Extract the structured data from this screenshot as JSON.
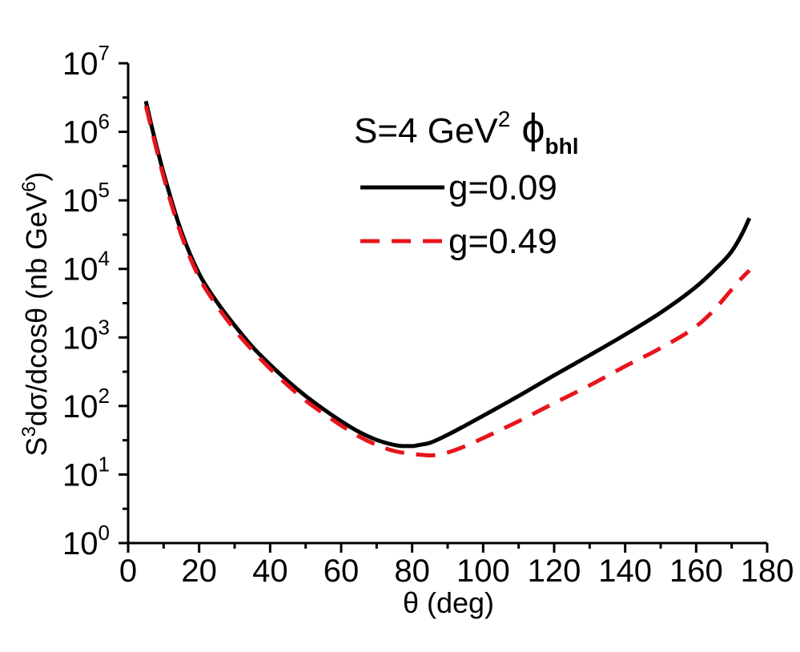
{
  "chart_data": {
    "type": "line",
    "x_scale": "linear",
    "y_scale": "log",
    "xlim": [
      0,
      180
    ],
    "ylim": [
      1,
      10000000
    ],
    "xticks": [
      0,
      20,
      40,
      60,
      80,
      100,
      120,
      140,
      160,
      180
    ],
    "xtick_labels": [
      "0",
      "20",
      "40",
      "60",
      "80",
      "100",
      "120",
      "140",
      "160",
      "180"
    ],
    "ytick_exponents": [
      0,
      1,
      2,
      3,
      4,
      5,
      6,
      7
    ],
    "ytick_labels": [
      {
        "base": "10",
        "exp": "0"
      },
      {
        "base": "10",
        "exp": "1"
      },
      {
        "base": "10",
        "exp": "2"
      },
      {
        "base": "10",
        "exp": "3"
      },
      {
        "base": "10",
        "exp": "4"
      },
      {
        "base": "10",
        "exp": "5"
      },
      {
        "base": "10",
        "exp": "6"
      },
      {
        "base": "10",
        "exp": "7"
      }
    ],
    "xlabel": "θ (deg)",
    "ylabel": {
      "part1": "S",
      "sup1": "3",
      "part2": "dσ/dcosθ (nb GeV",
      "sup2": "6",
      "part3": ")"
    },
    "grid": false,
    "legend": {
      "position": "top-right",
      "title": {
        "main": "S=4 GeV",
        "sup": "2",
        "phi": "ϕ",
        "sub": "bhl"
      }
    },
    "series": [
      {
        "name": "g=0.09",
        "color": "#000000",
        "style": "solid",
        "x": [
          5,
          7,
          10,
          15,
          20,
          25,
          30,
          35,
          40,
          45,
          50,
          55,
          60,
          65,
          70,
          75,
          78,
          80,
          82,
          85,
          90,
          95,
          100,
          110,
          120,
          130,
          140,
          150,
          160,
          165,
          170,
          173,
          175
        ],
        "y": [
          2800000,
          1000000,
          250000,
          35000,
          8500,
          3300,
          1500,
          730,
          400,
          230,
          140,
          90,
          60,
          42,
          32,
          27,
          26,
          26,
          27,
          29,
          38,
          52,
          72,
          140,
          280,
          550,
          1100,
          2300,
          5500,
          9500,
          18000,
          33000,
          55000
        ]
      },
      {
        "name": "g=0.49",
        "color": "#e8141c",
        "style": "dashed",
        "x": [
          5,
          7,
          10,
          15,
          20,
          25,
          30,
          35,
          40,
          45,
          50,
          55,
          60,
          65,
          70,
          75,
          80,
          82,
          85,
          90,
          95,
          100,
          110,
          120,
          130,
          140,
          150,
          160,
          165,
          170,
          173,
          175
        ],
        "y": [
          2400000,
          900000,
          220000,
          31000,
          7500,
          2900,
          1300,
          650,
          350,
          200,
          120,
          78,
          52,
          36,
          27,
          22,
          20,
          19.5,
          19,
          21,
          26,
          34,
          60,
          110,
          200,
          380,
          700,
          1450,
          2500,
          5000,
          7500,
          9500
        ]
      }
    ]
  }
}
